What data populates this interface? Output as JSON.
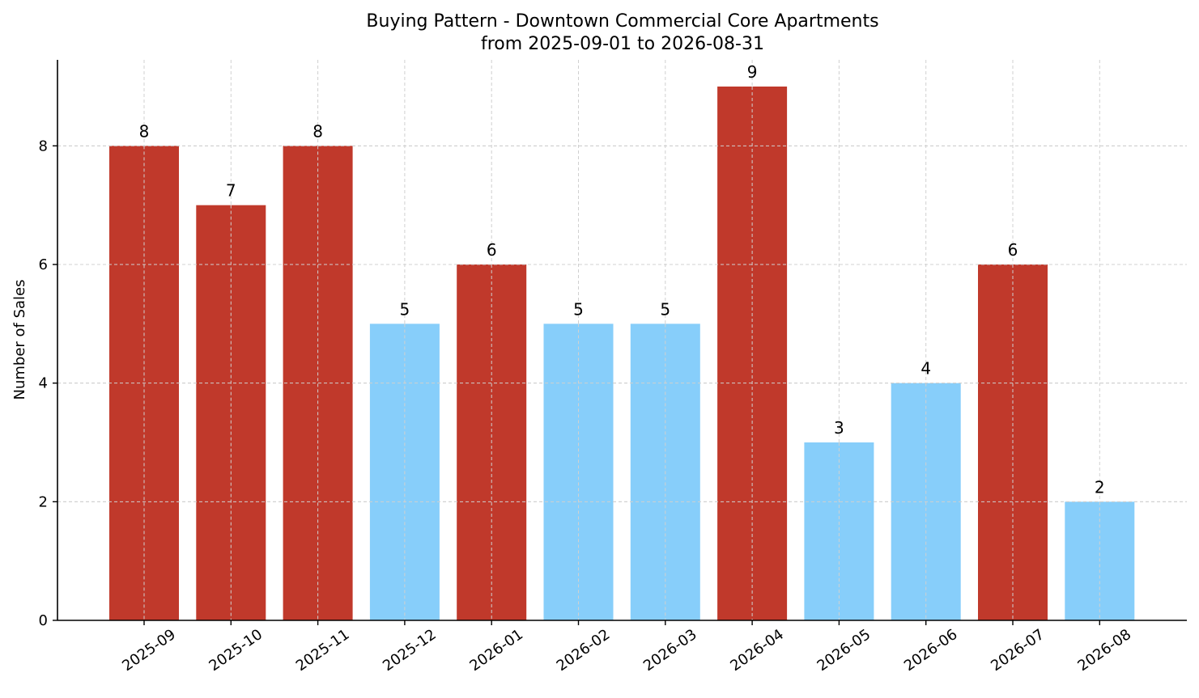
{
  "chart_data": {
    "type": "bar",
    "title": "Buying Pattern - Downtown Commercial Core Apartments",
    "subtitle": "from 2025-09-01 to 2026-08-31",
    "xlabel": "",
    "ylabel": "Number of Sales",
    "ylim": [
      0,
      9.45
    ],
    "yticks": [
      0,
      2,
      4,
      6,
      8
    ],
    "grid": true,
    "categories": [
      "2025-09",
      "2025-10",
      "2025-11",
      "2025-12",
      "2026-01",
      "2026-02",
      "2026-03",
      "2026-04",
      "2026-05",
      "2026-06",
      "2026-07",
      "2026-08"
    ],
    "values": [
      8,
      7,
      8,
      5,
      6,
      5,
      5,
      9,
      3,
      4,
      6,
      2
    ],
    "colors": {
      "high": "#c0392b",
      "low": "#87cefa"
    },
    "bar_color_group": [
      "high",
      "high",
      "high",
      "low",
      "high",
      "low",
      "low",
      "high",
      "low",
      "low",
      "high",
      "low"
    ]
  }
}
